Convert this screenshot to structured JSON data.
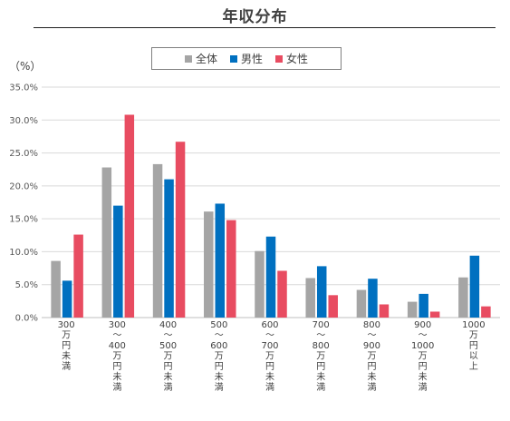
{
  "chart_data": {
    "type": "bar",
    "title": "年収分布",
    "unit_label": "（%）",
    "categories": [
      "300万円未満",
      "300〜400万円未満",
      "400〜500万円未満",
      "500〜600万円未満",
      "600〜700万円未満",
      "700〜800万円未満",
      "800〜900万円未満",
      "900〜1000万円未満",
      "1000万円以上"
    ],
    "category_lines": [
      [
        "300",
        "万",
        "円",
        "未",
        "満"
      ],
      [
        "300",
        "〜",
        "400",
        "万",
        "円",
        "未",
        "満"
      ],
      [
        "400",
        "〜",
        "500",
        "万",
        "円",
        "未",
        "満"
      ],
      [
        "500",
        "〜",
        "600",
        "万",
        "円",
        "未",
        "満"
      ],
      [
        "600",
        "〜",
        "700",
        "万",
        "円",
        "未",
        "満"
      ],
      [
        "700",
        "〜",
        "800",
        "万",
        "円",
        "未",
        "満"
      ],
      [
        "800",
        "〜",
        "900",
        "万",
        "円",
        "未",
        "満"
      ],
      [
        "900",
        "〜",
        "1000",
        "万",
        "円",
        "未",
        "満"
      ],
      [
        "1000",
        "万",
        "円",
        "以",
        "上"
      ]
    ],
    "series": [
      {
        "name": "全体",
        "color": "#a5a5a5",
        "values": [
          8.6,
          22.8,
          23.3,
          16.1,
          10.1,
          6.0,
          4.2,
          2.4,
          6.1
        ]
      },
      {
        "name": "男性",
        "color": "#0070c0",
        "values": [
          5.6,
          17.0,
          21.0,
          17.3,
          12.3,
          7.8,
          5.9,
          3.6,
          9.4
        ]
      },
      {
        "name": "女性",
        "color": "#e84c61",
        "values": [
          12.6,
          30.8,
          26.7,
          14.8,
          7.1,
          3.4,
          2.0,
          0.9,
          1.7
        ]
      }
    ],
    "ylim": [
      0,
      35
    ],
    "yticks": [
      "0.0%",
      "5.0%",
      "10.0%",
      "15.0%",
      "20.0%",
      "25.0%",
      "30.0%",
      "35.0%"
    ],
    "ytick_values": [
      0,
      5,
      10,
      15,
      20,
      25,
      30,
      35
    ],
    "grid": true,
    "legend_position": "top-center"
  }
}
